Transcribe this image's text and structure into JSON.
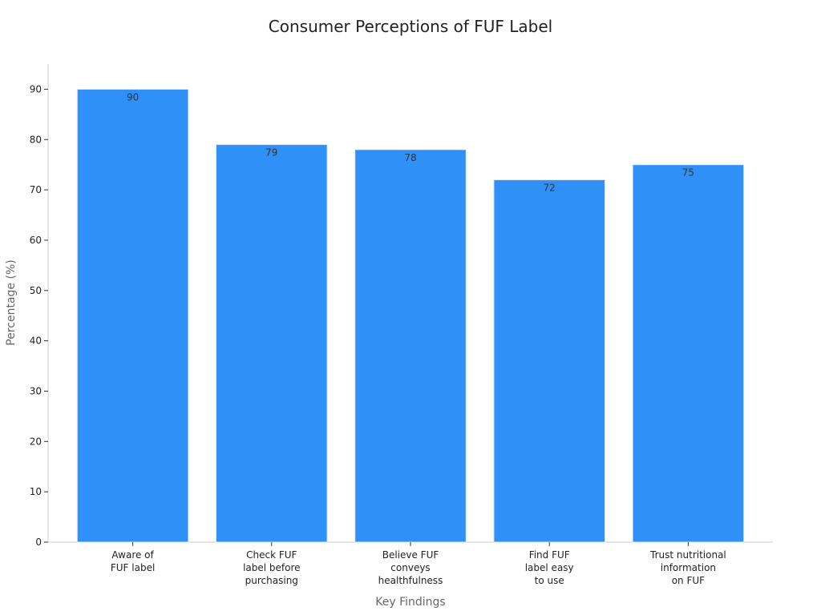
{
  "chart_data": {
    "type": "bar",
    "title": "Consumer Perceptions of FUF Label",
    "xlabel": "Key Findings",
    "ylabel": "Percentage (%)",
    "categories": [
      [
        "Aware of",
        "FUF label"
      ],
      [
        "Check FUF",
        "label before",
        "purchasing"
      ],
      [
        "Believe FUF",
        "conveys",
        "healthfulness"
      ],
      [
        "Find FUF",
        "label easy",
        "to use"
      ],
      [
        "Trust nutritional",
        "information",
        "on FUF"
      ]
    ],
    "values": [
      90,
      79,
      78,
      72,
      75
    ],
    "yticks": [
      0,
      10,
      20,
      30,
      40,
      50,
      60,
      70,
      80,
      90
    ],
    "ylim": [
      0,
      95
    ],
    "grid": false,
    "bar_color": "#2f90f8",
    "bar_edge_color": "#d9e9ff"
  }
}
